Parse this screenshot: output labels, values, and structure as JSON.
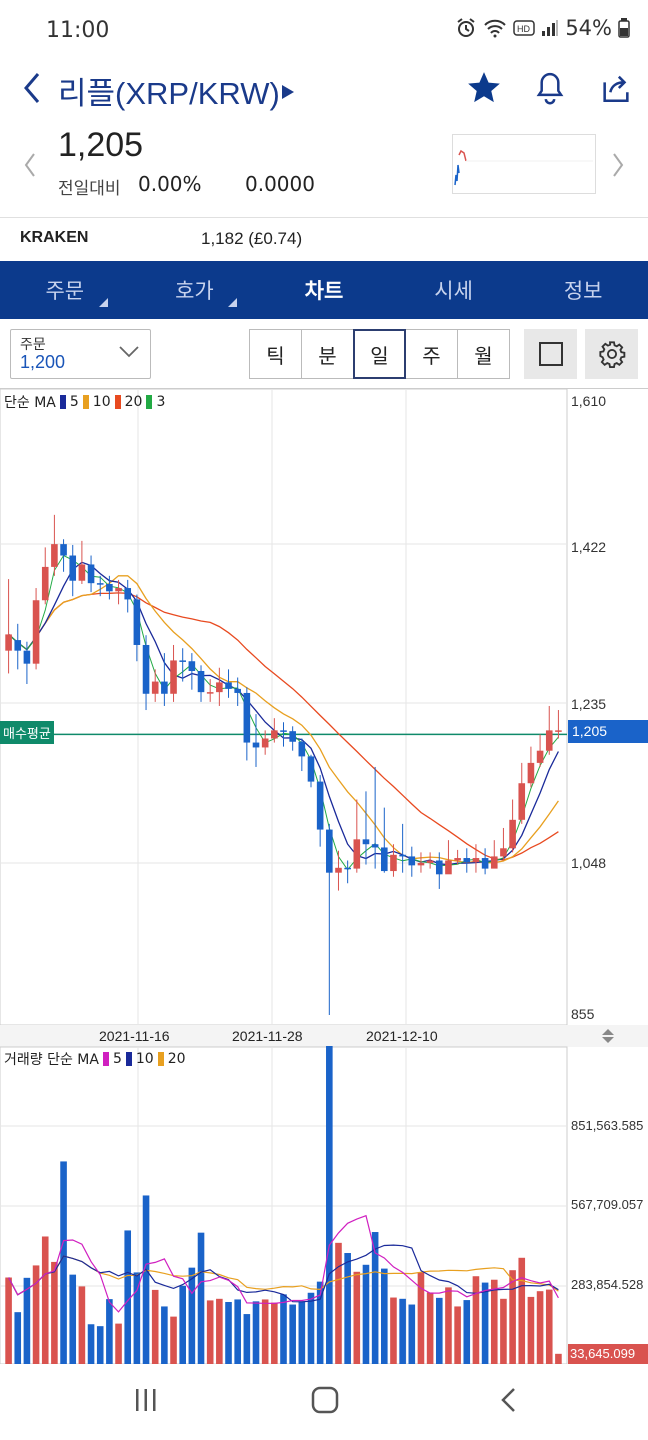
{
  "status": {
    "time": "11:00",
    "battery": "54%"
  },
  "header": {
    "title": "리플(XRP/KRW)"
  },
  "quote": {
    "price": "1,205",
    "change_label": "전일대비",
    "change_pct": "0.00%",
    "change_amt": "0.0000"
  },
  "exchange": {
    "name": "KRAKEN",
    "price": "1,182 (£0.74)"
  },
  "tabs": [
    {
      "label": "주문"
    },
    {
      "label": "호가"
    },
    {
      "label": "차트"
    },
    {
      "label": "시세"
    },
    {
      "label": "정보"
    }
  ],
  "toolbar": {
    "order_label": "주문",
    "order_value": "1,200",
    "periods": [
      {
        "label": "틱"
      },
      {
        "label": "분"
      },
      {
        "label": "일"
      },
      {
        "label": "주"
      },
      {
        "label": "월"
      }
    ],
    "active_period": "일"
  },
  "chart_data": {
    "type": "candlestick",
    "price_legend": {
      "label": "단순 MA",
      "items": [
        "5",
        "10",
        "20",
        "3"
      ],
      "colors": [
        "#1a2a9a",
        "#e8a020",
        "#e84a20",
        "#22aa44"
      ]
    },
    "volume_legend": {
      "label": "거래량 단순 MA",
      "items": [
        "5",
        "10",
        "20"
      ],
      "colors": [
        "#d020c0",
        "#1a2a9a",
        "#e8a020"
      ]
    },
    "y_ticks": [
      "1,610",
      "1,422",
      "1,235",
      "1,048",
      "855"
    ],
    "ylim": [
      855,
      1610
    ],
    "x_ticks": [
      "2021-11-16",
      "2021-11-28",
      "2021-12-10"
    ],
    "average_buy_label": "매수평균",
    "average_buy_price": 1200,
    "current_price_label": "1,205",
    "volume_ticks": [
      "851,563.585",
      "567,709.057",
      "283,854.528"
    ],
    "volume_max": 1000000,
    "last_volume_label": "33,645.099",
    "candles": [
      [
        1303,
        1323,
        1275,
        1391
      ],
      [
        1316,
        1303,
        1280,
        1336
      ],
      [
        1303,
        1287,
        1262,
        1314
      ],
      [
        1287,
        1365,
        1280,
        1380
      ],
      [
        1365,
        1406,
        1360,
        1430
      ],
      [
        1406,
        1434,
        1395,
        1470
      ],
      [
        1434,
        1420,
        1400,
        1440
      ],
      [
        1420,
        1389,
        1370,
        1433
      ],
      [
        1389,
        1409,
        1385,
        1438
      ],
      [
        1409,
        1386,
        1375,
        1420
      ],
      [
        1386,
        1385,
        1370,
        1395
      ],
      [
        1385,
        1376,
        1366,
        1395
      ],
      [
        1376,
        1380,
        1360,
        1390
      ],
      [
        1380,
        1366,
        1350,
        1390
      ],
      [
        1366,
        1310,
        1290,
        1372
      ],
      [
        1310,
        1250,
        1230,
        1322
      ],
      [
        1250,
        1265,
        1240,
        1280
      ],
      [
        1265,
        1250,
        1235,
        1300
      ],
      [
        1250,
        1291,
        1240,
        1310
      ],
      [
        1291,
        1290,
        1265,
        1306
      ],
      [
        1290,
        1278,
        1255,
        1300
      ],
      [
        1278,
        1252,
        1240,
        1285
      ],
      [
        1252,
        1252,
        1240,
        1268
      ],
      [
        1252,
        1264,
        1235,
        1282
      ],
      [
        1264,
        1256,
        1245,
        1280
      ],
      [
        1256,
        1251,
        1235,
        1270
      ],
      [
        1251,
        1190,
        1168,
        1258
      ],
      [
        1190,
        1184,
        1160,
        1225
      ],
      [
        1184,
        1195,
        1175,
        1205
      ],
      [
        1195,
        1205,
        1190,
        1220
      ],
      [
        1205,
        1204,
        1185,
        1215
      ],
      [
        1204,
        1191,
        1180,
        1210
      ],
      [
        1191,
        1173,
        1155,
        1195
      ],
      [
        1173,
        1142,
        1135,
        1175
      ],
      [
        1142,
        1083,
        1062,
        1150
      ],
      [
        1083,
        1030,
        855,
        1090
      ],
      [
        1030,
        1036,
        1008,
        1057
      ],
      [
        1036,
        1035,
        1017,
        1045
      ],
      [
        1035,
        1071,
        1030,
        1120
      ],
      [
        1071,
        1065,
        1040,
        1130
      ],
      [
        1065,
        1061,
        1035,
        1160
      ],
      [
        1061,
        1032,
        1030,
        1110
      ],
      [
        1032,
        1052,
        1025,
        1065
      ],
      [
        1052,
        1050,
        1030,
        1090
      ],
      [
        1050,
        1039,
        1025,
        1062
      ],
      [
        1039,
        1042,
        1030,
        1055
      ],
      [
        1042,
        1045,
        1035,
        1055
      ],
      [
        1045,
        1028,
        1010,
        1055
      ],
      [
        1028,
        1045,
        1030,
        1070
      ],
      [
        1045,
        1048,
        1040,
        1058
      ],
      [
        1048,
        1043,
        1030,
        1060
      ],
      [
        1043,
        1048,
        1030,
        1065
      ],
      [
        1048,
        1035,
        1028,
        1060
      ],
      [
        1035,
        1050,
        1040,
        1070
      ],
      [
        1050,
        1060,
        1045,
        1085
      ],
      [
        1060,
        1095,
        1055,
        1120
      ],
      [
        1095,
        1140,
        1090,
        1165
      ],
      [
        1140,
        1165,
        1135,
        1185
      ],
      [
        1165,
        1180,
        1160,
        1200
      ],
      [
        1180,
        1205,
        1175,
        1235
      ],
      [
        1205,
        1205,
        1195,
        1230
      ]
    ],
    "volumes": [
      272,
      163,
      271,
      310,
      401,
      321,
      637,
      281,
      244,
      125,
      119,
      204,
      127,
      420,
      288,
      530,
      233,
      181,
      149,
      246,
      303,
      413,
      200,
      205,
      195,
      203,
      157,
      197,
      203,
      193,
      219,
      187,
      197,
      224,
      259,
      1000,
      381,
      349,
      290,
      312,
      415,
      300,
      209,
      205,
      187,
      289,
      225,
      208,
      241,
      181,
      201,
      276,
      256,
      265,
      205,
      295,
      334,
      211,
      229,
      234,
      32
    ]
  }
}
